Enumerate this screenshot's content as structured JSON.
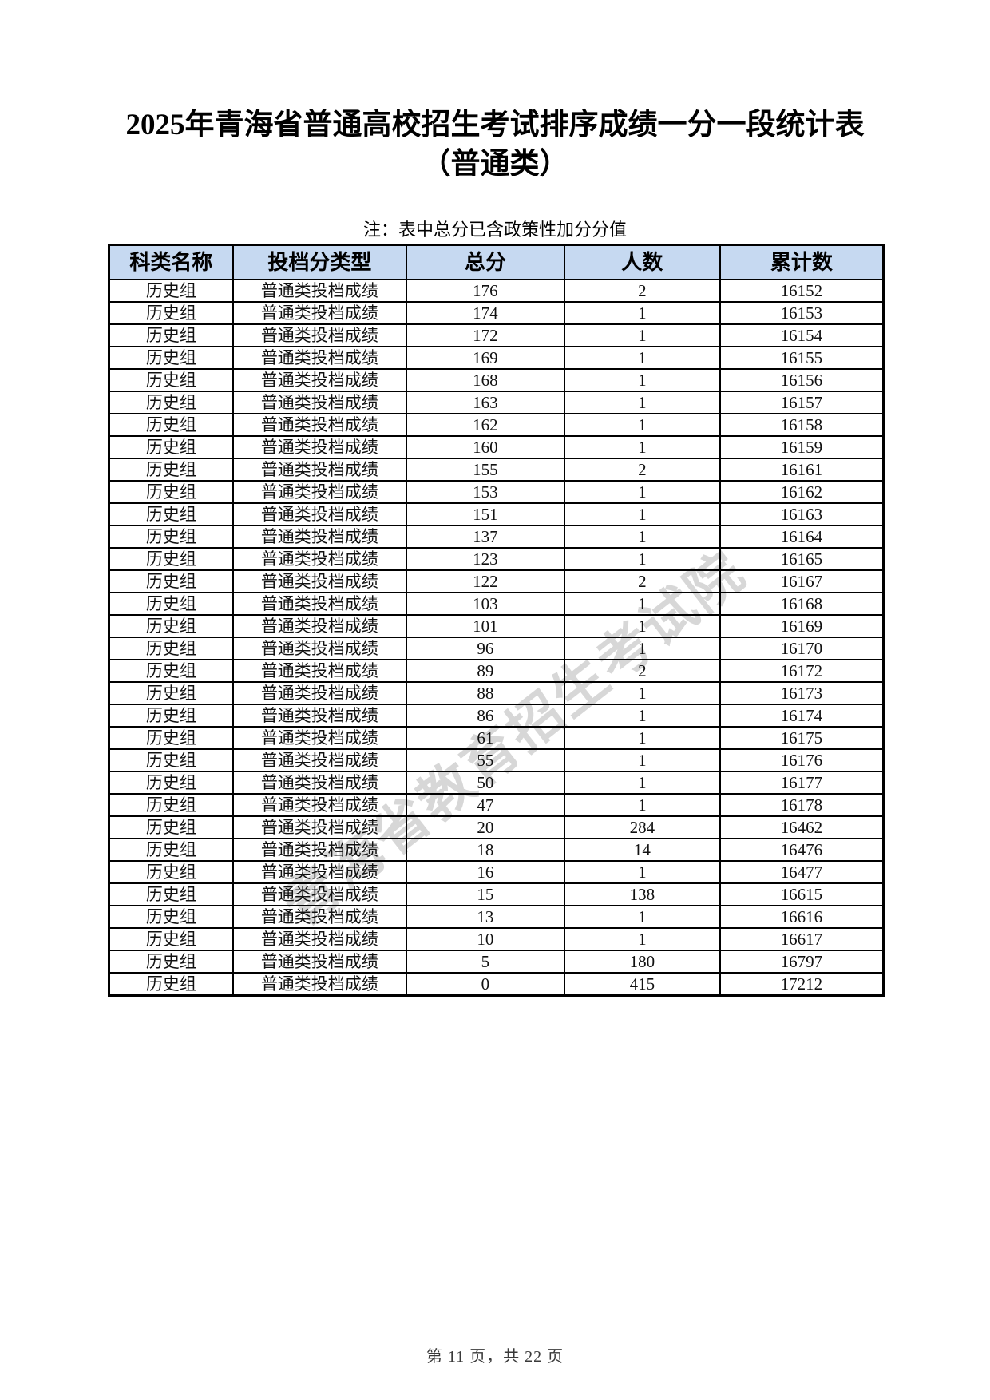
{
  "page": {
    "title_line1": "2025年青海省普通高校招生考试排序成绩一分一段统计表",
    "title_line2": "（普通类）",
    "note": "注：表中总分已含政策性加分分值",
    "watermark": "青海省教育招生考试院",
    "footer": "第 11 页，共 22 页"
  },
  "colors": {
    "header_bg": "#c6d9f1",
    "border": "#000000",
    "watermark": "rgba(110,110,110,0.28)"
  },
  "table": {
    "column_keys": [
      "category",
      "score-type",
      "total-score",
      "count",
      "cumulative"
    ],
    "headers": [
      "科类名称",
      "投档分类型",
      "总分",
      "人数",
      "累计数"
    ],
    "rows": [
      [
        "历史组",
        "普通类投档成绩",
        "176",
        "2",
        "16152"
      ],
      [
        "历史组",
        "普通类投档成绩",
        "174",
        "1",
        "16153"
      ],
      [
        "历史组",
        "普通类投档成绩",
        "172",
        "1",
        "16154"
      ],
      [
        "历史组",
        "普通类投档成绩",
        "169",
        "1",
        "16155"
      ],
      [
        "历史组",
        "普通类投档成绩",
        "168",
        "1",
        "16156"
      ],
      [
        "历史组",
        "普通类投档成绩",
        "163",
        "1",
        "16157"
      ],
      [
        "历史组",
        "普通类投档成绩",
        "162",
        "1",
        "16158"
      ],
      [
        "历史组",
        "普通类投档成绩",
        "160",
        "1",
        "16159"
      ],
      [
        "历史组",
        "普通类投档成绩",
        "155",
        "2",
        "16161"
      ],
      [
        "历史组",
        "普通类投档成绩",
        "153",
        "1",
        "16162"
      ],
      [
        "历史组",
        "普通类投档成绩",
        "151",
        "1",
        "16163"
      ],
      [
        "历史组",
        "普通类投档成绩",
        "137",
        "1",
        "16164"
      ],
      [
        "历史组",
        "普通类投档成绩",
        "123",
        "1",
        "16165"
      ],
      [
        "历史组",
        "普通类投档成绩",
        "122",
        "2",
        "16167"
      ],
      [
        "历史组",
        "普通类投档成绩",
        "103",
        "1",
        "16168"
      ],
      [
        "历史组",
        "普通类投档成绩",
        "101",
        "1",
        "16169"
      ],
      [
        "历史组",
        "普通类投档成绩",
        "96",
        "1",
        "16170"
      ],
      [
        "历史组",
        "普通类投档成绩",
        "89",
        "2",
        "16172"
      ],
      [
        "历史组",
        "普通类投档成绩",
        "88",
        "1",
        "16173"
      ],
      [
        "历史组",
        "普通类投档成绩",
        "86",
        "1",
        "16174"
      ],
      [
        "历史组",
        "普通类投档成绩",
        "61",
        "1",
        "16175"
      ],
      [
        "历史组",
        "普通类投档成绩",
        "55",
        "1",
        "16176"
      ],
      [
        "历史组",
        "普通类投档成绩",
        "50",
        "1",
        "16177"
      ],
      [
        "历史组",
        "普通类投档成绩",
        "47",
        "1",
        "16178"
      ],
      [
        "历史组",
        "普通类投档成绩",
        "20",
        "284",
        "16462"
      ],
      [
        "历史组",
        "普通类投档成绩",
        "18",
        "14",
        "16476"
      ],
      [
        "历史组",
        "普通类投档成绩",
        "16",
        "1",
        "16477"
      ],
      [
        "历史组",
        "普通类投档成绩",
        "15",
        "138",
        "16615"
      ],
      [
        "历史组",
        "普通类投档成绩",
        "13",
        "1",
        "16616"
      ],
      [
        "历史组",
        "普通类投档成绩",
        "10",
        "1",
        "16617"
      ],
      [
        "历史组",
        "普通类投档成绩",
        "5",
        "180",
        "16797"
      ],
      [
        "历史组",
        "普通类投档成绩",
        "0",
        "415",
        "17212"
      ]
    ]
  }
}
